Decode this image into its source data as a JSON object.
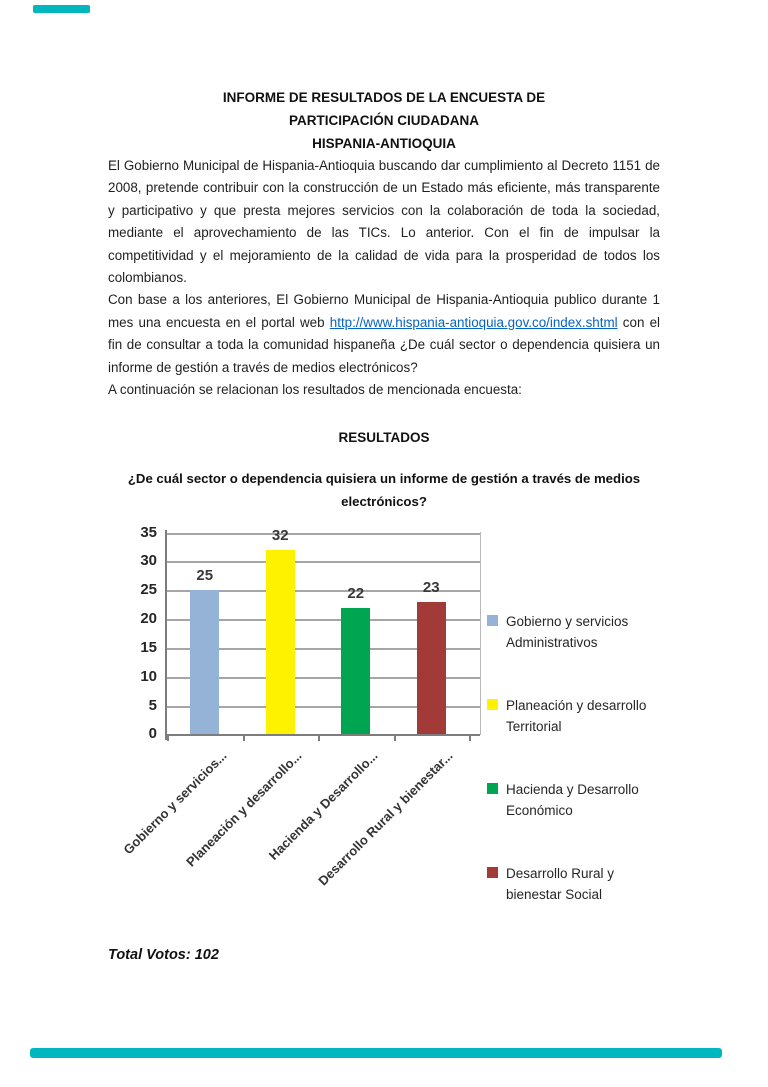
{
  "accent_color": "#00b6bf",
  "header": {
    "title_lines": [
      "INFORME DE RESULTADOS DE LA ENCUESTA DE",
      "PARTICIPACIÓN CIUDADANA",
      "HISPANIA-ANTIOQUIA"
    ]
  },
  "paragraphs": {
    "p1": "El Gobierno Municipal de Hispania-Antioquia buscando dar cumplimiento al Decreto 1151 de 2008, pretende contribuir con la construcción de un Estado más eficiente, más transparente y participativo y que presta mejores servicios con la colaboración de toda la sociedad, mediante el aprovechamiento de las TICs. Lo anterior. Con el fin de impulsar la competitividad y el mejoramiento de la calidad de vida para la prosperidad de todos los colombianos.",
    "p2_before": "Con base a los anteriores, El Gobierno Municipal de Hispania-Antioquia publico durante 1 mes una encuesta en el portal web ",
    "p2_link": "http://www.hispania-antioquia.gov.co/index.shtml",
    "p2_after": " con el fin de consultar a toda la comunidad hispaneña ¿De cuál sector o dependencia quisiera un informe de gestión a través de medios electrónicos?",
    "p3": "A continuación se relacionan los resultados de mencionada encuesta:"
  },
  "results": {
    "heading": "RESULTADOS",
    "question_line1": "¿De cuál sector o dependencia quisiera un informe de gestión a través de medios",
    "question_line2": "electrónicos?"
  },
  "chart_data": {
    "type": "bar",
    "title": "¿De cuál sector o dependencia quisiera un informe de gestión a través de medios electrónicos?",
    "categories": [
      "Gobierno y servicios...",
      "Planeación y desarrollo...",
      "Hacienda y Desarrollo...",
      "Desarrollo Rural y bienestar..."
    ],
    "values": [
      25,
      32,
      22,
      23
    ],
    "bar_colors": [
      "#95b3d7",
      "#fff200",
      "#00a551",
      "#a23b38"
    ],
    "legend": [
      "Gobierno y servicios Administrativos",
      "Planeación y desarrollo Territorial",
      "Hacienda y Desarrollo Económico",
      "Desarrollo Rural y bienestar Social"
    ],
    "xlabel": "",
    "ylabel": "",
    "ylim": [
      0,
      35
    ],
    "ytick_step": 5,
    "grid": true,
    "legend_position": "right",
    "value_labels": true
  },
  "footer": {
    "total_votes": "Total Votos: 102"
  }
}
